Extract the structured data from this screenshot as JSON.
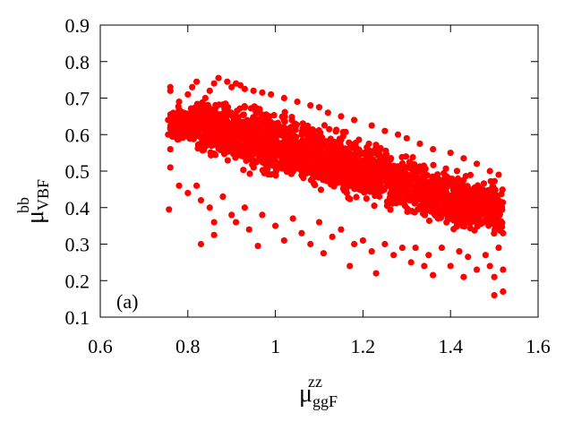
{
  "chart_data": {
    "type": "scatter",
    "title": "",
    "panel_label": "(a)",
    "xlabel": {
      "base": "μ",
      "sup": "zz",
      "sub": "ggF"
    },
    "ylabel": {
      "base": "μ",
      "sup": "bb",
      "sub": "VBF"
    },
    "xlim": [
      0.6,
      1.6
    ],
    "ylim": [
      0.1,
      0.9
    ],
    "xticks": [
      "0.6",
      "0.8",
      "1",
      "1.2",
      "1.4",
      "1.6"
    ],
    "yticks": [
      "0.1",
      "0.2",
      "0.3",
      "0.4",
      "0.5",
      "0.6",
      "0.7",
      "0.8",
      "0.9"
    ],
    "grid": false,
    "marker_color": "#ff0000",
    "series": [
      {
        "points": [
          [
            0.76,
            0.73
          ],
          [
            0.76,
            0.72
          ],
          [
            0.755,
            0.64
          ],
          [
            0.76,
            0.62
          ],
          [
            0.755,
            0.6
          ],
          [
            0.76,
            0.56
          ],
          [
            0.76,
            0.51
          ],
          [
            0.757,
            0.395
          ],
          [
            0.78,
            0.69
          ],
          [
            0.79,
            0.66
          ],
          [
            0.8,
            0.71
          ],
          [
            0.81,
            0.73
          ],
          [
            0.82,
            0.745
          ],
          [
            0.84,
            0.7
          ],
          [
            0.85,
            0.72
          ],
          [
            0.86,
            0.74
          ],
          [
            0.87,
            0.755
          ],
          [
            0.89,
            0.745
          ],
          [
            0.9,
            0.73
          ],
          [
            0.91,
            0.74
          ],
          [
            0.92,
            0.735
          ],
          [
            0.93,
            0.725
          ],
          [
            0.95,
            0.72
          ],
          [
            0.97,
            0.715
          ],
          [
            0.99,
            0.71
          ],
          [
            1.02,
            0.7
          ],
          [
            1.05,
            0.69
          ],
          [
            1.08,
            0.68
          ],
          [
            1.1,
            0.675
          ],
          [
            1.12,
            0.66
          ],
          [
            1.15,
            0.65
          ],
          [
            1.18,
            0.64
          ],
          [
            1.22,
            0.625
          ],
          [
            1.25,
            0.61
          ],
          [
            1.28,
            0.6
          ],
          [
            1.3,
            0.59
          ],
          [
            1.33,
            0.575
          ],
          [
            1.36,
            0.56
          ],
          [
            1.4,
            0.55
          ],
          [
            1.43,
            0.535
          ],
          [
            1.46,
            0.52
          ],
          [
            1.49,
            0.5
          ],
          [
            1.51,
            0.49
          ],
          [
            0.78,
            0.46
          ],
          [
            0.8,
            0.44
          ],
          [
            0.82,
            0.46
          ],
          [
            0.83,
            0.42
          ],
          [
            0.83,
            0.3
          ],
          [
            0.85,
            0.4
          ],
          [
            0.86,
            0.36
          ],
          [
            0.86,
            0.325
          ],
          [
            0.88,
            0.43
          ],
          [
            0.9,
            0.38
          ],
          [
            0.91,
            0.36
          ],
          [
            0.93,
            0.4
          ],
          [
            0.94,
            0.34
          ],
          [
            0.96,
            0.295
          ],
          [
            0.97,
            0.38
          ],
          [
            1.0,
            0.35
          ],
          [
            1.02,
            0.31
          ],
          [
            1.04,
            0.37
          ],
          [
            1.06,
            0.33
          ],
          [
            1.08,
            0.3
          ],
          [
            1.1,
            0.36
          ],
          [
            1.11,
            0.275
          ],
          [
            1.13,
            0.32
          ],
          [
            1.15,
            0.34
          ],
          [
            1.17,
            0.24
          ],
          [
            1.18,
            0.3
          ],
          [
            1.2,
            0.31
          ],
          [
            1.22,
            0.28
          ],
          [
            1.23,
            0.22
          ],
          [
            1.25,
            0.3
          ],
          [
            1.27,
            0.27
          ],
          [
            1.29,
            0.29
          ],
          [
            1.31,
            0.25
          ],
          [
            1.32,
            0.29
          ],
          [
            1.34,
            0.24
          ],
          [
            1.35,
            0.27
          ],
          [
            1.36,
            0.215
          ],
          [
            1.38,
            0.29
          ],
          [
            1.4,
            0.24
          ],
          [
            1.42,
            0.28
          ],
          [
            1.43,
            0.21
          ],
          [
            1.44,
            0.265
          ],
          [
            1.46,
            0.23
          ],
          [
            1.48,
            0.27
          ],
          [
            1.49,
            0.24
          ],
          [
            1.5,
            0.21
          ],
          [
            1.5,
            0.16
          ],
          [
            1.52,
            0.17
          ],
          [
            1.52,
            0.23
          ],
          [
            1.51,
            0.29
          ],
          [
            1.52,
            0.33
          ]
        ]
      }
    ],
    "dense_band": {
      "description": "approximate envelope of densely packed points",
      "x_range": [
        0.76,
        1.52
      ],
      "upper": [
        [
          0.76,
          0.68
        ],
        [
          0.85,
          0.71
        ],
        [
          0.95,
          0.7
        ],
        [
          1.05,
          0.66
        ],
        [
          1.15,
          0.62
        ],
        [
          1.25,
          0.58
        ],
        [
          1.35,
          0.54
        ],
        [
          1.45,
          0.5
        ],
        [
          1.52,
          0.48
        ]
      ],
      "lower": [
        [
          0.76,
          0.58
        ],
        [
          0.85,
          0.53
        ],
        [
          0.95,
          0.47
        ],
        [
          1.05,
          0.45
        ],
        [
          1.15,
          0.42
        ],
        [
          1.25,
          0.39
        ],
        [
          1.35,
          0.35
        ],
        [
          1.45,
          0.32
        ],
        [
          1.52,
          0.3
        ]
      ]
    }
  }
}
